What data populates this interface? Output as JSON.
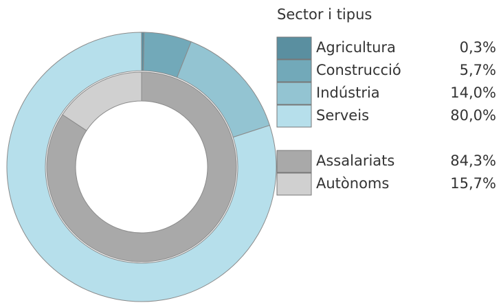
{
  "chart_data": {
    "type": "donut",
    "title": "Sector i tipus",
    "rings": [
      {
        "categories": [
          "Agricultura",
          "Construcció",
          "Indústria",
          "Serveis"
        ],
        "values": [
          0.3,
          5.7,
          14.0,
          80.0
        ],
        "value_labels": [
          "0,3%",
          "5,7%",
          "14,0%",
          "80,0%"
        ],
        "colors": [
          "#5a8fa0",
          "#72a9b9",
          "#93c4d2",
          "#b6dfeb"
        ]
      },
      {
        "categories": [
          "Assalariats",
          "Autònoms"
        ],
        "values": [
          84.3,
          15.7
        ],
        "value_labels": [
          "84,3%",
          "15,7%"
        ],
        "colors": [
          "#a9a9a9",
          "#d0d0d0"
        ]
      }
    ]
  }
}
